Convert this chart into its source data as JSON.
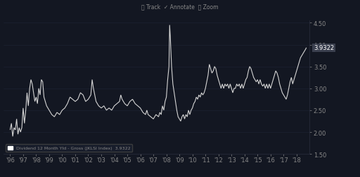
{
  "background_color": "#131722",
  "plot_bg_color": "#131722",
  "line_color": "#d4d4d4",
  "grid_color": "#1e2535",
  "text_color": "#888888",
  "title_toolbar": "⭖ Track  ✓ Annotate  🔍 Zoom",
  "legend_label": "Dividend 12 Month Yld - Gross (JKLSI Index)  3.9322",
  "ylim": [
    1.5,
    4.55
  ],
  "yticks": [
    1.5,
    2.0,
    2.5,
    3.0,
    3.5,
    4.0,
    4.5
  ],
  "current_value": "3.9322",
  "data": [
    [
      1996.0,
      2.05
    ],
    [
      1996.1,
      2.2
    ],
    [
      1996.2,
      1.9
    ],
    [
      1996.3,
      2.1
    ],
    [
      1996.4,
      2.05
    ],
    [
      1996.5,
      2.3
    ],
    [
      1996.6,
      1.95
    ],
    [
      1996.7,
      2.1
    ],
    [
      1996.8,
      2.0
    ],
    [
      1996.9,
      2.1
    ],
    [
      1997.0,
      2.55
    ],
    [
      1997.1,
      2.2
    ],
    [
      1997.2,
      2.5
    ],
    [
      1997.3,
      2.9
    ],
    [
      1997.4,
      2.6
    ],
    [
      1997.5,
      3.0
    ],
    [
      1997.6,
      3.2
    ],
    [
      1997.7,
      3.1
    ],
    [
      1997.8,
      2.9
    ],
    [
      1997.9,
      2.7
    ],
    [
      1998.0,
      2.8
    ],
    [
      1998.1,
      2.65
    ],
    [
      1998.2,
      3.0
    ],
    [
      1998.3,
      2.85
    ],
    [
      1998.4,
      3.2
    ],
    [
      1998.5,
      3.15
    ],
    [
      1998.6,
      2.8
    ],
    [
      1998.7,
      2.7
    ],
    [
      1998.8,
      2.6
    ],
    [
      1998.9,
      2.55
    ],
    [
      1999.0,
      2.5
    ],
    [
      1999.2,
      2.4
    ],
    [
      1999.4,
      2.35
    ],
    [
      1999.6,
      2.45
    ],
    [
      1999.8,
      2.4
    ],
    [
      2000.0,
      2.5
    ],
    [
      2000.2,
      2.55
    ],
    [
      2000.4,
      2.65
    ],
    [
      2000.6,
      2.8
    ],
    [
      2000.8,
      2.75
    ],
    [
      2001.0,
      2.7
    ],
    [
      2001.2,
      2.75
    ],
    [
      2001.4,
      2.9
    ],
    [
      2001.6,
      2.85
    ],
    [
      2001.8,
      2.7
    ],
    [
      2002.0,
      2.75
    ],
    [
      2002.2,
      2.85
    ],
    [
      2002.3,
      3.2
    ],
    [
      2002.4,
      3.0
    ],
    [
      2002.5,
      2.85
    ],
    [
      2002.6,
      2.7
    ],
    [
      2002.8,
      2.6
    ],
    [
      2003.0,
      2.55
    ],
    [
      2003.2,
      2.6
    ],
    [
      2003.4,
      2.5
    ],
    [
      2003.6,
      2.55
    ],
    [
      2003.8,
      2.5
    ],
    [
      2004.0,
      2.6
    ],
    [
      2004.2,
      2.65
    ],
    [
      2004.4,
      2.7
    ],
    [
      2004.5,
      2.85
    ],
    [
      2004.6,
      2.75
    ],
    [
      2004.8,
      2.65
    ],
    [
      2005.0,
      2.6
    ],
    [
      2005.2,
      2.7
    ],
    [
      2005.4,
      2.75
    ],
    [
      2005.6,
      2.65
    ],
    [
      2005.8,
      2.6
    ],
    [
      2006.0,
      2.55
    ],
    [
      2006.2,
      2.45
    ],
    [
      2006.4,
      2.4
    ],
    [
      2006.5,
      2.5
    ],
    [
      2006.6,
      2.4
    ],
    [
      2006.8,
      2.35
    ],
    [
      2007.0,
      2.3
    ],
    [
      2007.2,
      2.4
    ],
    [
      2007.4,
      2.35
    ],
    [
      2007.5,
      2.45
    ],
    [
      2007.6,
      2.4
    ],
    [
      2007.7,
      2.6
    ],
    [
      2007.8,
      2.5
    ],
    [
      2007.9,
      2.7
    ],
    [
      2008.0,
      2.8
    ],
    [
      2008.1,
      3.2
    ],
    [
      2008.2,
      3.5
    ],
    [
      2008.25,
      4.45
    ],
    [
      2008.3,
      4.2
    ],
    [
      2008.4,
      3.5
    ],
    [
      2008.5,
      3.1
    ],
    [
      2008.6,
      2.9
    ],
    [
      2008.7,
      2.7
    ],
    [
      2008.8,
      2.5
    ],
    [
      2008.9,
      2.35
    ],
    [
      2009.0,
      2.3
    ],
    [
      2009.1,
      2.25
    ],
    [
      2009.2,
      2.35
    ],
    [
      2009.3,
      2.4
    ],
    [
      2009.4,
      2.3
    ],
    [
      2009.5,
      2.4
    ],
    [
      2009.6,
      2.35
    ],
    [
      2009.7,
      2.5
    ],
    [
      2009.8,
      2.4
    ],
    [
      2009.9,
      2.5
    ],
    [
      2010.0,
      2.55
    ],
    [
      2010.1,
      2.65
    ],
    [
      2010.2,
      2.7
    ],
    [
      2010.3,
      2.8
    ],
    [
      2010.4,
      2.75
    ],
    [
      2010.5,
      2.85
    ],
    [
      2010.6,
      2.8
    ],
    [
      2010.7,
      2.9
    ],
    [
      2010.8,
      2.85
    ],
    [
      2010.9,
      2.9
    ],
    [
      2011.0,
      3.0
    ],
    [
      2011.1,
      3.15
    ],
    [
      2011.2,
      3.3
    ],
    [
      2011.3,
      3.55
    ],
    [
      2011.4,
      3.45
    ],
    [
      2011.5,
      3.35
    ],
    [
      2011.6,
      3.4
    ],
    [
      2011.7,
      3.5
    ],
    [
      2011.8,
      3.45
    ],
    [
      2011.9,
      3.3
    ],
    [
      2012.0,
      3.2
    ],
    [
      2012.1,
      3.1
    ],
    [
      2012.2,
      3.0
    ],
    [
      2012.3,
      3.1
    ],
    [
      2012.4,
      3.0
    ],
    [
      2012.5,
      3.1
    ],
    [
      2012.6,
      3.05
    ],
    [
      2012.7,
      3.1
    ],
    [
      2012.8,
      3.0
    ],
    [
      2012.9,
      3.1
    ],
    [
      2013.0,
      3.0
    ],
    [
      2013.1,
      2.9
    ],
    [
      2013.2,
      3.0
    ],
    [
      2013.3,
      3.0
    ],
    [
      2013.4,
      3.1
    ],
    [
      2013.5,
      3.05
    ],
    [
      2013.6,
      3.1
    ],
    [
      2013.7,
      3.0
    ],
    [
      2013.8,
      3.1
    ],
    [
      2013.9,
      3.0
    ],
    [
      2014.0,
      3.1
    ],
    [
      2014.1,
      3.2
    ],
    [
      2014.2,
      3.25
    ],
    [
      2014.3,
      3.4
    ],
    [
      2014.4,
      3.5
    ],
    [
      2014.5,
      3.45
    ],
    [
      2014.6,
      3.35
    ],
    [
      2014.7,
      3.25
    ],
    [
      2014.8,
      3.2
    ],
    [
      2014.9,
      3.15
    ],
    [
      2015.0,
      3.2
    ],
    [
      2015.1,
      3.1
    ],
    [
      2015.2,
      3.2
    ],
    [
      2015.3,
      3.1
    ],
    [
      2015.4,
      3.05
    ],
    [
      2015.5,
      3.1
    ],
    [
      2015.6,
      3.0
    ],
    [
      2015.7,
      3.1
    ],
    [
      2015.8,
      3.0
    ],
    [
      2015.9,
      3.1
    ],
    [
      2016.0,
      3.0
    ],
    [
      2016.1,
      3.1
    ],
    [
      2016.2,
      3.2
    ],
    [
      2016.3,
      3.3
    ],
    [
      2016.4,
      3.4
    ],
    [
      2016.5,
      3.35
    ],
    [
      2016.6,
      3.25
    ],
    [
      2016.7,
      3.1
    ],
    [
      2016.8,
      3.0
    ],
    [
      2016.9,
      2.9
    ],
    [
      2017.0,
      2.85
    ],
    [
      2017.1,
      2.8
    ],
    [
      2017.2,
      2.75
    ],
    [
      2017.3,
      2.85
    ],
    [
      2017.4,
      3.0
    ],
    [
      2017.5,
      3.15
    ],
    [
      2017.6,
      3.25
    ],
    [
      2017.7,
      3.1
    ],
    [
      2017.8,
      3.2
    ],
    [
      2017.9,
      3.3
    ],
    [
      2018.0,
      3.4
    ],
    [
      2018.1,
      3.5
    ],
    [
      2018.2,
      3.6
    ],
    [
      2018.3,
      3.7
    ],
    [
      2018.4,
      3.75
    ],
    [
      2018.5,
      3.8
    ],
    [
      2018.6,
      3.85
    ],
    [
      2018.7,
      3.9
    ],
    [
      2018.75,
      3.9322
    ]
  ]
}
